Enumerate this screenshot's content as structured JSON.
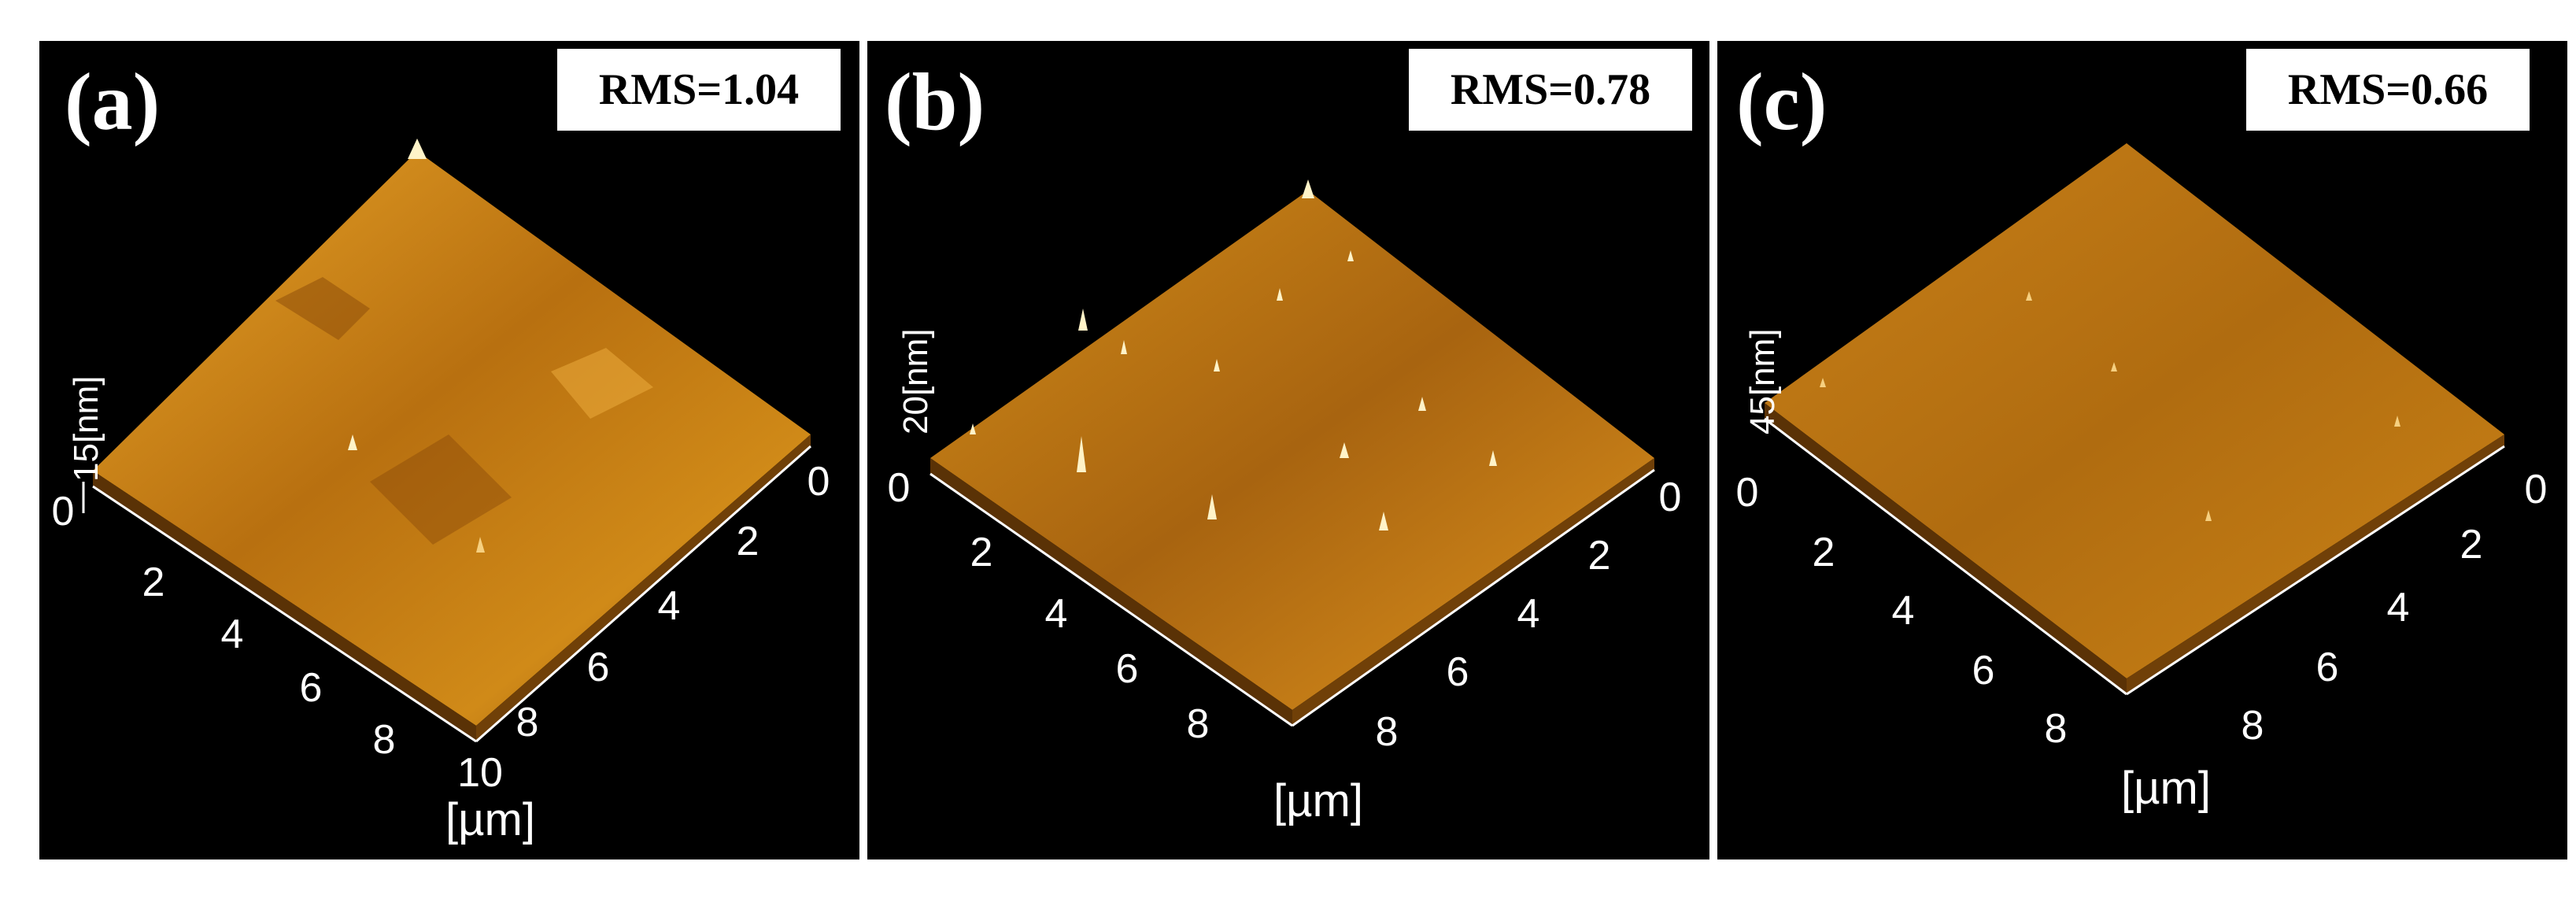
{
  "figure": {
    "panels": [
      {
        "label": "(a)",
        "rms": "RMS=1.04",
        "z_label": "15[nm]",
        "z_zero": "0",
        "x_ticks": [
          "2",
          "4",
          "6",
          "8",
          "10"
        ],
        "y_ticks": [
          "0",
          "2",
          "4",
          "6",
          "8"
        ],
        "unit": "[µm]"
      },
      {
        "label": "(b)",
        "rms": "RMS=0.78",
        "z_label": "20[nm]",
        "z_zero": "0",
        "x_ticks": [
          "2",
          "4",
          "6",
          "8"
        ],
        "y_ticks": [
          "0",
          "2",
          "4",
          "6",
          "8"
        ],
        "unit": "[µm]"
      },
      {
        "label": "(c)",
        "rms": "RMS=0.66",
        "z_label": "45[nm]",
        "z_zero": "0",
        "x_ticks": [
          "2",
          "4",
          "6",
          "8"
        ],
        "y_ticks": [
          "0",
          "2",
          "4",
          "6",
          "8"
        ],
        "unit": "[µm]"
      }
    ]
  },
  "colors": {
    "background": "#000000",
    "surface_light": "#e8a428",
    "surface_mid": "#c07a10",
    "surface_dark": "#6a3a06",
    "peak": "#fff3c8"
  }
}
